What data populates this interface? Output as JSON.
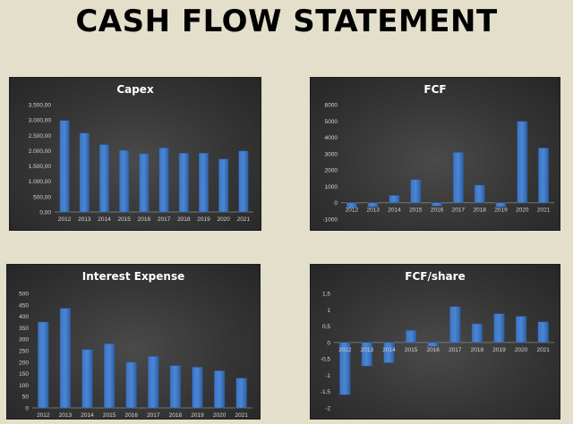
{
  "page": {
    "title": "CASH FLOW STATEMENT"
  },
  "colors": {
    "background": "#e3dfca",
    "panel": "#353535",
    "bar": "#4a86d4",
    "grid": "#5a5a5a",
    "text": "#ffffff",
    "tick": "#d6d6d6"
  },
  "chart_data": [
    {
      "type": "bar",
      "title": "Capex",
      "categories": [
        "2012",
        "2013",
        "2014",
        "2015",
        "2016",
        "2017",
        "2018",
        "2019",
        "2020",
        "2021"
      ],
      "values": [
        2980,
        2570,
        2200,
        2010,
        1900,
        2090,
        1920,
        1920,
        1730,
        1990
      ],
      "ylim": [
        0,
        3500
      ],
      "yticks": [
        0,
        500,
        1000,
        1500,
        2000,
        2500,
        3000,
        3500
      ],
      "ytick_labels": [
        "0,00",
        "500,00",
        "1.000,00",
        "1.500,00",
        "2.000,00",
        "2.500,00",
        "3.000,00",
        "3.500,00"
      ],
      "xlabel": "",
      "ylabel": "",
      "grid": false,
      "legend": "none"
    },
    {
      "type": "bar",
      "title": "FCF",
      "categories": [
        "2012",
        "2013",
        "2014",
        "2015",
        "2016",
        "2017",
        "2018",
        "2019",
        "2020",
        "2021"
      ],
      "values": [
        -300,
        -250,
        450,
        1420,
        -200,
        3080,
        1080,
        -250,
        4980,
        3350
      ],
      "ylim": [
        -1000,
        6000
      ],
      "yticks": [
        -1000,
        0,
        1000,
        2000,
        3000,
        4000,
        5000,
        6000
      ],
      "ytick_labels": [
        "-1000",
        "0",
        "1000",
        "2000",
        "3000",
        "4000",
        "5000",
        "6000"
      ],
      "xlabel": "",
      "ylabel": "",
      "grid": false,
      "legend": "none"
    },
    {
      "type": "bar",
      "title": "Interest Expense",
      "categories": [
        "2012",
        "2013",
        "2014",
        "2015",
        "2016",
        "2017",
        "2018",
        "2019",
        "2020",
        "2021"
      ],
      "values": [
        375,
        435,
        255,
        280,
        200,
        225,
        185,
        178,
        162,
        130
      ],
      "ylim": [
        0,
        500
      ],
      "yticks": [
        0,
        50,
        100,
        150,
        200,
        250,
        300,
        350,
        400,
        450,
        500
      ],
      "ytick_labels": [
        "0",
        "50",
        "100",
        "150",
        "200",
        "250",
        "300",
        "350",
        "400",
        "450",
        "500"
      ],
      "xlabel": "",
      "ylabel": "",
      "grid": false,
      "legend": "none"
    },
    {
      "type": "bar",
      "title": "FCF/share",
      "categories": [
        "2012",
        "2013",
        "2014",
        "2015",
        "2016",
        "2017",
        "2018",
        "2019",
        "2020",
        "2021"
      ],
      "values": [
        -1.6,
        -0.72,
        -0.62,
        0.37,
        -0.12,
        1.1,
        0.57,
        0.88,
        0.8,
        0.63
      ],
      "ylim": [
        -2,
        1.5
      ],
      "yticks": [
        -2,
        -1.5,
        -1,
        -0.5,
        0,
        0.5,
        1,
        1.5
      ],
      "ytick_labels": [
        "-2",
        "-1,5",
        "-1",
        "-0,5",
        "0",
        "0,5",
        "1",
        "1,5"
      ],
      "xlabel": "",
      "ylabel": "",
      "grid": false,
      "legend": "none"
    }
  ]
}
